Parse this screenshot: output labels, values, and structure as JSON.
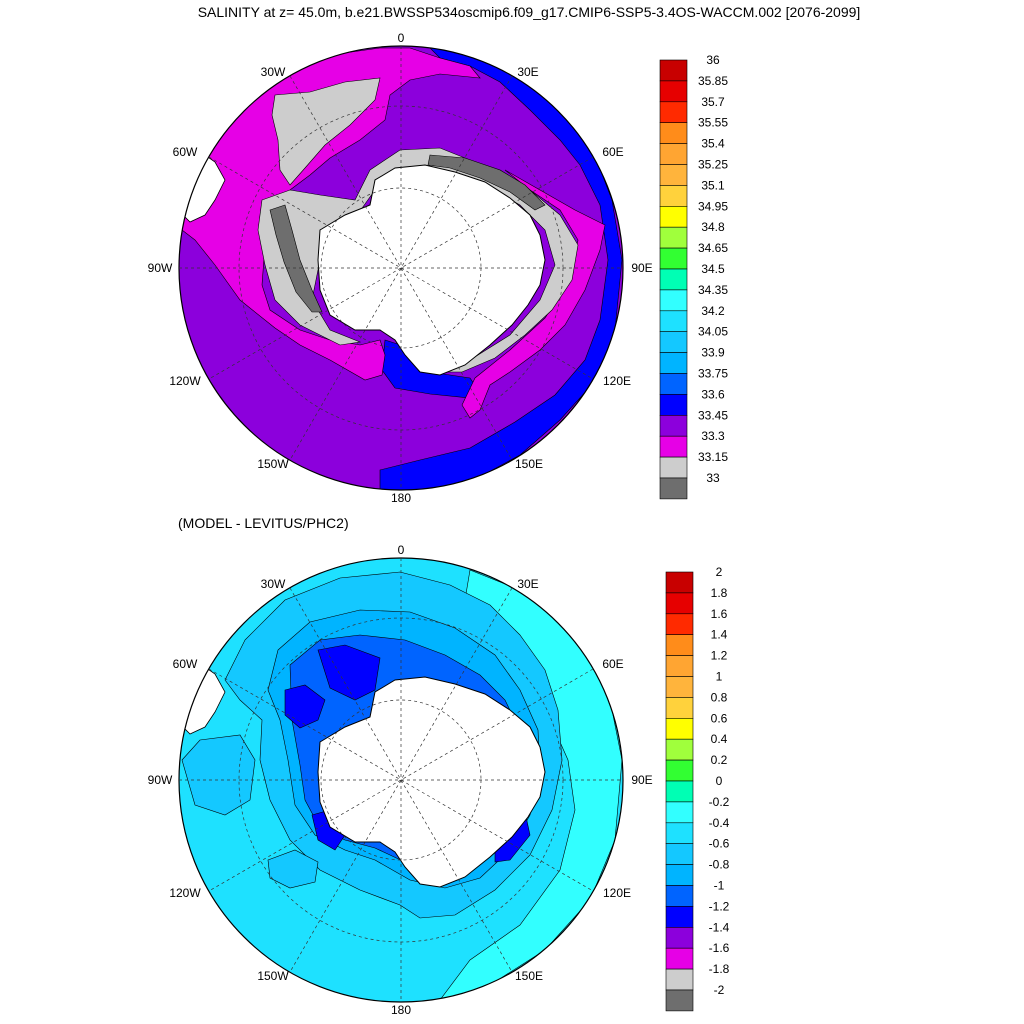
{
  "title": "SALINITY at z=  45.0m, b.e21.BWSSP534oscmip6.f09_g17.CMIP6-SSP5-3.4OS-WACCM.002 [2076-2099]",
  "diff_title": "(MODEL - LEVITUS/PHC2)",
  "lon_labels": [
    "0",
    "30E",
    "60E",
    "90E",
    "120E",
    "150E",
    "180",
    "150W",
    "120W",
    "90W",
    "60W",
    "30W"
  ],
  "panels": [
    {
      "id": "salinity",
      "legend_labels": [
        "36",
        "35.85",
        "35.7",
        "35.55",
        "35.4",
        "35.25",
        "35.1",
        "34.95",
        "34.8",
        "34.65",
        "34.5",
        "34.35",
        "34.2",
        "34.05",
        "33.9",
        "33.75",
        "33.6",
        "33.45",
        "33.3",
        "33.15",
        "33"
      ],
      "legend_colors": [
        "#c80000",
        "#e60000",
        "#ff2a00",
        "#ff8c1a",
        "#ffa532",
        "#ffb43c",
        "#ffd23c",
        "#ffff00",
        "#a0ff3c",
        "#32ff32",
        "#00ffb4",
        "#32ffff",
        "#1ee1ff",
        "#14c8ff",
        "#00b4ff",
        "#0064ff",
        "#0000ff",
        "#8c00dc",
        "#e600e6",
        "#cdcdcd",
        "#6e6e6e"
      ]
    },
    {
      "id": "difference",
      "legend_labels": [
        "2",
        "1.8",
        "1.6",
        "1.4",
        "1.2",
        "1",
        "0.8",
        "0.6",
        "0.4",
        "0.2",
        "0",
        "-0.2",
        "-0.4",
        "-0.6",
        "-0.8",
        "-1",
        "-1.2",
        "-1.4",
        "-1.6",
        "-1.8",
        "-2"
      ],
      "legend_colors": [
        "#c80000",
        "#e60000",
        "#ff2a00",
        "#ff8c1a",
        "#ffa532",
        "#ffb43c",
        "#ffd23c",
        "#ffff00",
        "#a0ff3c",
        "#32ff32",
        "#00ffb4",
        "#32ffff",
        "#1ee1ff",
        "#14c8ff",
        "#00b4ff",
        "#0064ff",
        "#0000ff",
        "#8c00dc",
        "#e600e6",
        "#cdcdcd",
        "#6e6e6e"
      ]
    }
  ]
}
